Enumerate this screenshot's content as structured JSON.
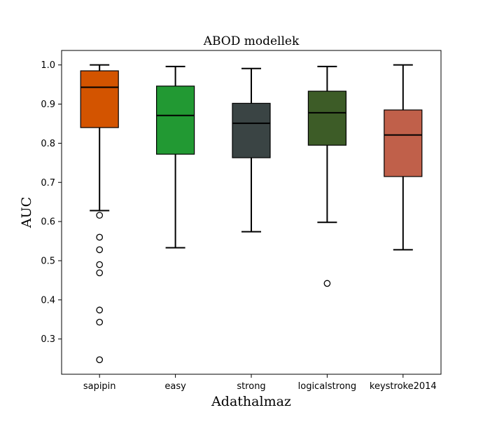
{
  "chart_data": {
    "type": "box",
    "title": "ABOD modellek",
    "xlabel": "Adathalmaz",
    "ylabel": "AUC",
    "ylim": [
      0.21,
      1.037
    ],
    "yticks": [
      0.3,
      0.4,
      0.5,
      0.6,
      0.7,
      0.8,
      0.9,
      1.0
    ],
    "ytick_labels": [
      "0.3",
      "0.4",
      "0.5",
      "0.6",
      "0.7",
      "0.8",
      "0.9",
      "1.0"
    ],
    "grid": false,
    "legend": "none",
    "categories": [
      "sapipin",
      "easy",
      "strong",
      "logicalstrong",
      "keystroke2014"
    ],
    "boxes": [
      {
        "category": "sapipin",
        "color": "#d35400",
        "whisker_low": 0.628,
        "q1": 0.84,
        "median": 0.943,
        "q3": 0.985,
        "whisker_high": 1.0,
        "outliers": [
          0.616,
          0.56,
          0.528,
          0.49,
          0.469,
          0.374,
          0.343,
          0.247
        ]
      },
      {
        "category": "easy",
        "color": "#229933",
        "whisker_low": 0.533,
        "q1": 0.772,
        "median": 0.871,
        "q3": 0.946,
        "whisker_high": 0.996,
        "outliers": []
      },
      {
        "category": "strong",
        "color": "#3a4444",
        "whisker_low": 0.574,
        "q1": 0.763,
        "median": 0.851,
        "q3": 0.902,
        "whisker_high": 0.991,
        "outliers": []
      },
      {
        "category": "logicalstrong",
        "color": "#3d5c27",
        "whisker_low": 0.598,
        "q1": 0.795,
        "median": 0.878,
        "q3": 0.933,
        "whisker_high": 0.996,
        "outliers": [
          0.442
        ]
      },
      {
        "category": "keystroke2014",
        "color": "#c0604a",
        "whisker_low": 0.528,
        "q1": 0.715,
        "median": 0.821,
        "q3": 0.885,
        "whisker_high": 1.0,
        "outliers": []
      }
    ]
  }
}
